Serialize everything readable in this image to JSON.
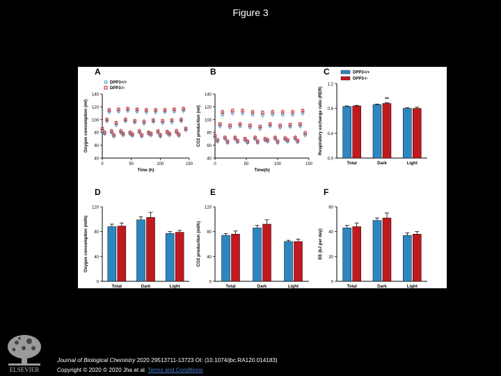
{
  "page": {
    "title": "Figure 3",
    "citation": {
      "journal": "Journal of Biological Chemistry",
      "ref": "2020 29513711-13723 OI: (10.1074/jbc.RA120.014183)",
      "copyright": "Copyright © 2020 © 2020 Jha et al.",
      "link": "Terms and Conditions"
    },
    "publisher": "ELSEVIER"
  },
  "colors": {
    "wt": "#2e86c1",
    "ko": "#c0191f",
    "error": "#000000"
  },
  "legend": {
    "wt": "DPP3+/+",
    "ko": "DPP3-/-"
  },
  "chart_data": [
    {
      "panel": "A",
      "type": "scatter",
      "ylabel": "Oxygen consumption (ml)",
      "xlabel": "Time (h)",
      "xlim": [
        0,
        150
      ],
      "ylim": [
        40,
        140
      ],
      "xticks": [
        0,
        50,
        100,
        150
      ],
      "yticks": [
        40,
        60,
        80,
        100,
        120,
        140
      ],
      "series": [
        {
          "name": "DPP3+/+",
          "x": [
            0,
            4,
            8,
            12,
            16,
            20,
            24,
            28,
            32,
            36,
            40,
            44,
            48,
            52,
            56,
            60,
            64,
            68,
            72,
            76,
            80,
            84,
            88,
            92,
            96,
            100,
            104,
            108,
            112,
            116,
            120,
            124,
            128,
            132,
            136,
            140,
            144
          ],
          "y": [
            83,
            78,
            98,
            112,
            80,
            74,
            92,
            113,
            80,
            76,
            98,
            114,
            78,
            75,
            96,
            113,
            80,
            74,
            94,
            112,
            78,
            76,
            97,
            112,
            80,
            74,
            95,
            112,
            79,
            76,
            96,
            113,
            80,
            75,
            98,
            114,
            84
          ]
        },
        {
          "name": "DPP3-/-",
          "x": [
            0,
            4,
            8,
            12,
            16,
            20,
            24,
            28,
            32,
            36,
            40,
            44,
            48,
            52,
            56,
            60,
            64,
            68,
            72,
            76,
            80,
            84,
            88,
            92,
            96,
            100,
            104,
            108,
            112,
            116,
            120,
            124,
            128,
            132,
            136,
            140,
            144
          ],
          "y": [
            86,
            80,
            100,
            115,
            82,
            76,
            95,
            116,
            82,
            78,
            100,
            117,
            80,
            77,
            98,
            116,
            82,
            76,
            97,
            115,
            80,
            78,
            99,
            115,
            82,
            76,
            98,
            115,
            81,
            78,
            99,
            116,
            82,
            77,
            100,
            117,
            86
          ]
        }
      ]
    },
    {
      "panel": "B",
      "type": "scatter",
      "ylabel": "CO2 production (ml)",
      "xlabel": "Time(h)",
      "xlim": [
        0,
        150
      ],
      "ylim": [
        40,
        140
      ],
      "xticks": [
        0,
        50,
        100,
        150
      ],
      "yticks": [
        40,
        60,
        80,
        100,
        120,
        140
      ],
      "series": [
        {
          "name": "DPP3+/+",
          "x": [
            0,
            4,
            8,
            12,
            16,
            20,
            24,
            28,
            32,
            36,
            40,
            44,
            48,
            52,
            56,
            60,
            64,
            68,
            72,
            76,
            80,
            84,
            88,
            92,
            96,
            100,
            104,
            108,
            112,
            116,
            120,
            124,
            128,
            132,
            136,
            140,
            144
          ],
          "y": [
            72,
            66,
            90,
            108,
            70,
            64,
            88,
            110,
            70,
            65,
            90,
            110,
            68,
            64,
            88,
            108,
            70,
            64,
            86,
            107,
            68,
            66,
            90,
            108,
            70,
            64,
            88,
            108,
            69,
            66,
            89,
            108,
            70,
            65,
            90,
            110,
            76
          ]
        },
        {
          "name": "DPP3-/-",
          "x": [
            0,
            4,
            8,
            12,
            16,
            20,
            24,
            28,
            32,
            36,
            40,
            44,
            48,
            52,
            56,
            60,
            64,
            68,
            72,
            76,
            80,
            84,
            88,
            92,
            96,
            100,
            104,
            108,
            112,
            116,
            120,
            124,
            128,
            132,
            136,
            140,
            144
          ],
          "y": [
            75,
            68,
            93,
            112,
            72,
            66,
            91,
            114,
            72,
            67,
            93,
            114,
            70,
            66,
            91,
            112,
            72,
            66,
            89,
            111,
            70,
            68,
            93,
            112,
            72,
            66,
            91,
            112,
            71,
            68,
            92,
            112,
            72,
            67,
            93,
            114,
            79
          ]
        }
      ]
    },
    {
      "panel": "C",
      "type": "bar",
      "ylabel": "Respiratory exchange ratio (RER)",
      "categories": [
        "Total",
        "Dark",
        "Light"
      ],
      "ylim": [
        0,
        1.2
      ],
      "yticks": [
        0.0,
        0.4,
        0.8,
        1.2
      ],
      "annotations": [
        {
          "category": "Dark",
          "text": "**"
        }
      ],
      "series": [
        {
          "name": "DPP3+/+",
          "values": [
            0.83,
            0.86,
            0.8
          ],
          "errors": [
            0.01,
            0.01,
            0.01
          ]
        },
        {
          "name": "DPP3-/-",
          "values": [
            0.84,
            0.88,
            0.8
          ],
          "errors": [
            0.01,
            0.01,
            0.02
          ]
        }
      ]
    },
    {
      "panel": "D",
      "type": "bar",
      "ylabel": "Oxygen consumption (ml/h)",
      "categories": [
        "Total",
        "Dark",
        "Light"
      ],
      "ylim": [
        0,
        120
      ],
      "yticks": [
        0,
        40,
        80,
        120
      ],
      "series": [
        {
          "name": "DPP3+/+",
          "values": [
            88,
            99,
            77
          ],
          "errors": [
            4,
            5,
            3
          ]
        },
        {
          "name": "DPP3-/-",
          "values": [
            89,
            103,
            79
          ],
          "errors": [
            5,
            8,
            3
          ]
        }
      ]
    },
    {
      "panel": "E",
      "type": "bar",
      "ylabel": "CO2 production (ml/h)",
      "categories": [
        "Total",
        "Dark",
        "Light"
      ],
      "ylim": [
        0,
        120
      ],
      "yticks": [
        0,
        40,
        80,
        120
      ],
      "series": [
        {
          "name": "DPP3+/+",
          "values": [
            74,
            86,
            64
          ],
          "errors": [
            3,
            4,
            2
          ]
        },
        {
          "name": "DPP3-/-",
          "values": [
            76,
            92,
            64
          ],
          "errors": [
            5,
            7,
            4
          ]
        }
      ]
    },
    {
      "panel": "F",
      "type": "bar",
      "ylabel": "EE (kJ per day)",
      "categories": [
        "Total",
        "Dark",
        "Light"
      ],
      "ylim": [
        0,
        60
      ],
      "yticks": [
        0,
        20,
        40,
        60
      ],
      "series": [
        {
          "name": "DPP3+/+",
          "values": [
            43,
            49,
            37
          ],
          "errors": [
            2,
            2,
            2
          ]
        },
        {
          "name": "DPP3-/-",
          "values": [
            44,
            51,
            38
          ],
          "errors": [
            3,
            4,
            2
          ]
        }
      ]
    }
  ]
}
